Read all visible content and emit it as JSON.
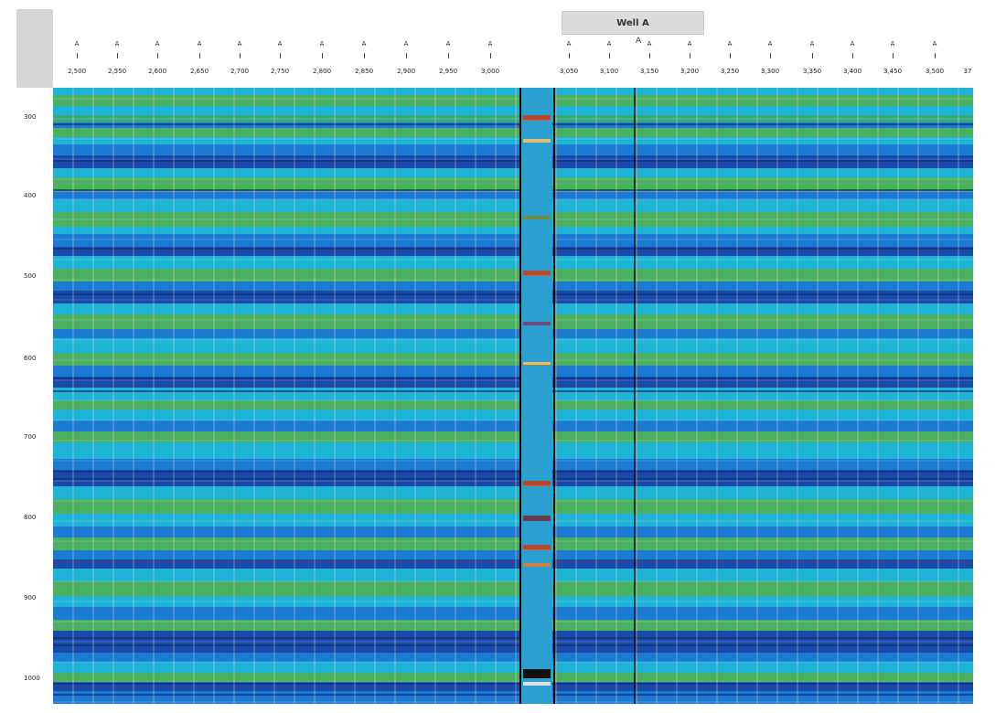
{
  "header": {
    "well_tab_label": "Well A",
    "well_marker": "A"
  },
  "trace_labels_left": [
    "2,500",
    "2,550",
    "2,600",
    "2,650",
    "2,700",
    "2,750",
    "2,800",
    "2,850",
    "2,900",
    "2,950",
    "3,000"
  ],
  "trace_labels_right": [
    "3,050",
    "3,100",
    "3,150",
    "3,200",
    "3,250",
    "3,300",
    "3,350",
    "3,400",
    "3,450",
    "3,500"
  ],
  "trace_label_suffix": "37",
  "tick_head": "A",
  "depth_labels": [
    "300",
    "400",
    "500",
    "600",
    "700",
    "800",
    "900",
    "1000"
  ],
  "colors": {
    "deep_blue": "#1a4aa8",
    "mid_blue": "#1d7ad3",
    "cyan": "#1fb4d6",
    "teal_green": "#38aa7a",
    "green": "#4cb063",
    "well_red": "#b04a30",
    "grid": "#ffffff",
    "divider": "#000000"
  }
}
